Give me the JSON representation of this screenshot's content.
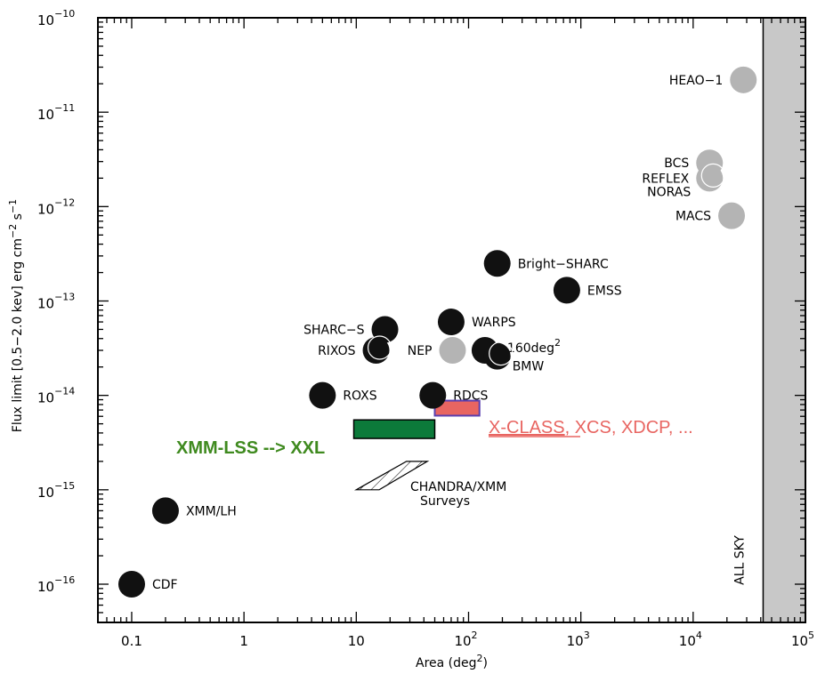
{
  "chart_data": {
    "type": "scatter",
    "xlabel": "Area (deg",
    "xlabel_sup": "2",
    "xlabel_end": ")",
    "ylabel": "Flux limit [0.5−2.0 kev] erg cm",
    "ylabel_sup1": "−2",
    "ylabel_mid": " s",
    "ylabel_sup2": "−1",
    "x_scale": "log",
    "y_scale": "log",
    "xlim": [
      0.05,
      100000
    ],
    "ylim": [
      1e-16,
      1e-10
    ],
    "x_ticks": [
      {
        "value": 0.1,
        "label": "0.1"
      },
      {
        "value": 1,
        "label": "1"
      },
      {
        "value": 10,
        "label": "10"
      },
      {
        "value": 100,
        "base": "10",
        "exp": "2"
      },
      {
        "value": 1000,
        "base": "10",
        "exp": "3"
      },
      {
        "value": 10000,
        "base": "10",
        "exp": "4"
      },
      {
        "value": 100000,
        "base": "10",
        "exp": "5"
      }
    ],
    "y_ticks": [
      {
        "value": 1e-10,
        "base": "10",
        "exp": "−10"
      },
      {
        "value": 1e-11,
        "base": "10",
        "exp": "−11"
      },
      {
        "value": 1e-12,
        "base": "10",
        "exp": "−12"
      },
      {
        "value": 1e-13,
        "base": "10",
        "exp": "−13"
      },
      {
        "value": 1e-14,
        "base": "10",
        "exp": "−14"
      },
      {
        "value": 1e-15,
        "base": "10",
        "exp": "−15"
      },
      {
        "value": 1e-16,
        "base": "10",
        "exp": "−16"
      }
    ],
    "points": [
      {
        "label": "HEAO−1",
        "x": 28000,
        "y": 2.2e-11,
        "color": "#b4b4b4",
        "label_pos": "left"
      },
      {
        "label": "BCS",
        "x": 14000,
        "y": 2.9e-12,
        "color": "#b4b4b4",
        "label_pos": "left"
      },
      {
        "label": "REFLEX",
        "x": 14000,
        "y": 2e-12,
        "color": "#b4b4b4",
        "label_pos": "left",
        "ring": true
      },
      {
        "label": "NORAS",
        "x": 14000,
        "y": 2e-12,
        "color": "#b4b4b4",
        "label_pos": "left-below",
        "ring": false,
        "hide_marker": true
      },
      {
        "label": "MACS",
        "x": 22000,
        "y": 8e-13,
        "color": "#b4b4b4",
        "label_pos": "left"
      },
      {
        "label": "Bright−SHARC",
        "x": 180,
        "y": 2.5e-13,
        "color": "#111111",
        "label_pos": "right"
      },
      {
        "label": "EMSS",
        "x": 750,
        "y": 1.3e-13,
        "color": "#111111",
        "label_pos": "right"
      },
      {
        "label": "WARPS",
        "x": 70,
        "y": 6e-14,
        "color": "#111111",
        "label_pos": "right"
      },
      {
        "label": "SHARC−S",
        "x": 18,
        "y": 5e-14,
        "color": "#111111",
        "label_pos": "left"
      },
      {
        "label": "RIXOS",
        "x": 15,
        "y": 3e-14,
        "color": "#111111",
        "label_pos": "left",
        "ring": true
      },
      {
        "label": "NEP",
        "x": 72,
        "y": 3e-14,
        "color": "#b4b4b4",
        "label_pos": "left"
      },
      {
        "label": "160deg",
        "label_sup": "2",
        "x": 140,
        "y": 3e-14,
        "color": "#111111",
        "label_pos": "right-up"
      },
      {
        "label": "BMW",
        "x": 180,
        "y": 2.6e-14,
        "color": "#111111",
        "label_pos": "right-down",
        "ring": true
      },
      {
        "label": "ROXS",
        "x": 5,
        "y": 1e-14,
        "color": "#111111",
        "label_pos": "right"
      },
      {
        "label": "RDCS",
        "x": 48,
        "y": 1e-14,
        "color": "#111111",
        "label_pos": "right"
      },
      {
        "label": "XMM/LH",
        "x": 0.2,
        "y": 6e-16,
        "color": "#111111",
        "label_pos": "right"
      },
      {
        "label": "CDF",
        "x": 0.1,
        "y": 1e-16,
        "color": "#111111",
        "label_pos": "right"
      }
    ],
    "regions": {
      "xxl": {
        "x0": 9.5,
        "x1": 50,
        "y0": 3.5e-15,
        "y1": 5.5e-15,
        "fill": "#0c7a3a",
        "label": "XMM-LSS --> XXL",
        "label_color": "#3f8a1f"
      },
      "xclass": {
        "x0": 50,
        "x1": 125,
        "y0": 6.1e-15,
        "y1": 8.8e-15,
        "fill": "#e86561",
        "stroke": "#5a3fb0",
        "label_underlined": "X-CLASS",
        "label_rest": ", XCS, XDCP, ...",
        "label_color": "#e86561"
      },
      "chandra": {
        "poly": [
          [
            10,
            1e-15
          ],
          [
            16,
            1e-15
          ],
          [
            43,
            2e-15
          ],
          [
            28,
            2e-15
          ]
        ],
        "label1": "CHANDRA/XMM",
        "label2": "Surveys"
      }
    },
    "all_sky": {
      "x0": 42000,
      "label": "ALL SKY",
      "fill": "#c8c8c8"
    }
  }
}
